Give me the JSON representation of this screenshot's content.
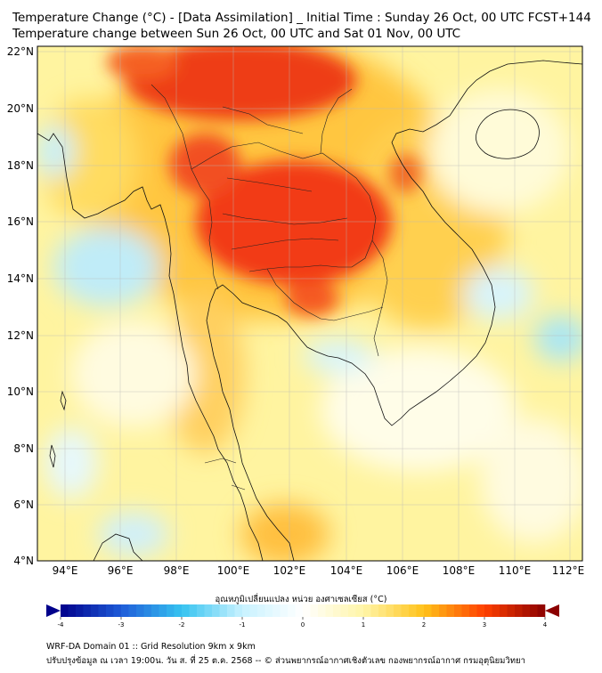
{
  "title_line1": "Temperature Change (°C) - [Data Assimilation] _ Initial Time : Sunday 26 Oct, 00 UTC FCST+144",
  "title_line2": "Temperature change between Sun 26 Oct, 00 UTC and Sat 01 Nov, 00 UTC",
  "map": {
    "lat_labels": [
      "22°N",
      "20°N",
      "18°N",
      "16°N",
      "14°N",
      "12°N",
      "10°N",
      "8°N",
      "6°N",
      "4°N"
    ],
    "lon_labels": [
      "94°E",
      "96°E",
      "98°E",
      "100°E",
      "102°E",
      "104°E",
      "106°E",
      "108°E",
      "110°E",
      "112°E"
    ]
  },
  "colorbar": {
    "title": "อุณหภูมิเปลี่ยนแปลง หน่วย องศาเซลเซียส (°C)",
    "ticks": [
      "-4",
      "-3",
      "-2",
      "-1",
      "0",
      "1",
      "2",
      "3",
      "4"
    ],
    "colors": [
      "#00008b",
      "#1e5bd8",
      "#36c3f0",
      "#c8f2ff",
      "#ffffff",
      "#fff5a8",
      "#ffc21a",
      "#ff4000",
      "#8b0000"
    ]
  },
  "footer": {
    "line1": "WRF-DA Domain 01 :: Grid Resolution 9km x 9km",
    "line2": "ปรับปรุงข้อมูล ณ เวลา 19:00น. วัน ส. ที่ 25 ต.ค. 2568 -- © ส่วนพยากรณ์อากาศเชิงตัวเลข กองพยากรณ์อากาศ กรมอุตุนิยมวิทยา"
  }
}
